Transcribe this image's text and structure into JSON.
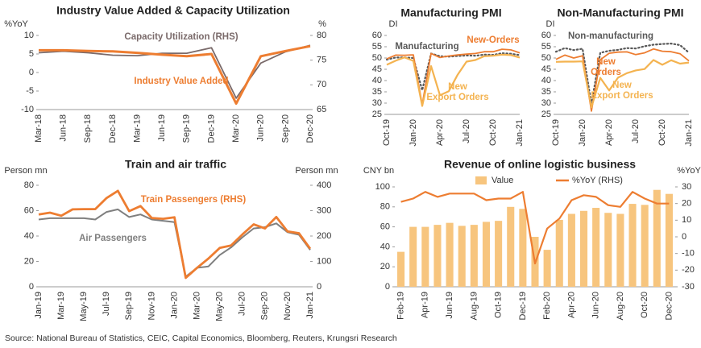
{
  "chart_data": [
    {
      "type": "line",
      "title": "Industry Value Added & Capacity Utilization",
      "y_label": "%YoY",
      "y2_label": "%",
      "categories": [
        "Mar-18",
        "Jun-18",
        "Sep-18",
        "Dec-18",
        "Mar-19",
        "Jun-19",
        "Sep-19",
        "Dec-19",
        "Mar-20",
        "Jun-20",
        "Sep-20",
        "Dec-20"
      ],
      "series": [
        {
          "name": "Capacity Utilization (RHS)",
          "color": "#7a6a6a",
          "axis": "y2",
          "values": [
            76.5,
            76.8,
            76.5,
            76.0,
            75.9,
            76.4,
            76.4,
            77.5,
            67.3,
            74.4,
            76.7,
            78.0
          ]
        },
        {
          "name": "Industry Value Added",
          "color": "#ed7d31",
          "values": [
            6.0,
            6.0,
            5.8,
            5.7,
            5.3,
            4.8,
            4.4,
            5.0,
            -8.4,
            4.4,
            5.8,
            7.1
          ]
        }
      ],
      "ylim": [
        -10,
        10
      ],
      "yticks": [
        -10,
        -5,
        0,
        5,
        10
      ],
      "y2lim": [
        65,
        80
      ],
      "y2ticks": [
        65,
        70,
        75,
        80
      ]
    },
    {
      "type": "line",
      "title": "Manufacturing PMI",
      "y_label": "DI",
      "categories": [
        "Oct-19",
        null,
        null,
        "Jan-20",
        null,
        null,
        "Apr-20",
        null,
        null,
        "Jul-20",
        null,
        null,
        "Oct-20",
        null,
        null,
        "Jan-21"
      ],
      "series": [
        {
          "name": "Manufacturing",
          "color": "#595959",
          "style": "dotted",
          "values": [
            49.3,
            50.2,
            50.2,
            50.0,
            35.7,
            52.0,
            50.8,
            50.6,
            50.9,
            51.1,
            51.0,
            51.5,
            51.4,
            52.1,
            51.9,
            51.3
          ]
        },
        {
          "name": "New-Orders",
          "color": "#ed7d31",
          "values": [
            49.6,
            51.3,
            51.2,
            51.4,
            29.3,
            52.0,
            50.2,
            50.9,
            51.4,
            51.7,
            52.0,
            52.8,
            52.8,
            53.9,
            53.6,
            52.3
          ]
        },
        {
          "name": "New\nExport Orders",
          "color": "#f4b350",
          "values": [
            47.0,
            48.8,
            50.3,
            48.7,
            28.7,
            46.4,
            33.5,
            35.3,
            42.6,
            48.4,
            49.1,
            50.8,
            51.0,
            51.5,
            51.3,
            50.2
          ]
        }
      ],
      "ylim": [
        25,
        60
      ],
      "yticks": [
        25,
        30,
        35,
        40,
        45,
        50,
        55,
        60
      ]
    },
    {
      "type": "line",
      "title": "Non-Manufacturing PMI",
      "y_label": "DI",
      "categories": [
        "Oct-19",
        null,
        null,
        "Jan-20",
        null,
        null,
        "Apr-20",
        null,
        null,
        "Jul-20",
        null,
        null,
        "Oct-20",
        null,
        null,
        "Jan-21"
      ],
      "series": [
        {
          "name": "Non-manufacturing",
          "color": "#595959",
          "style": "dotted",
          "values": [
            52.8,
            54.4,
            53.5,
            54.1,
            29.6,
            52.3,
            53.2,
            53.6,
            54.4,
            54.2,
            55.2,
            55.9,
            56.2,
            56.4,
            55.7,
            52.4
          ]
        },
        {
          "name": "New\nOrders",
          "color": "#ed7d31",
          "values": [
            49.4,
            51.3,
            50.0,
            51.0,
            26.5,
            49.2,
            52.1,
            52.6,
            52.7,
            51.5,
            52.3,
            54.0,
            53.0,
            52.8,
            51.9,
            48.7
          ]
        },
        {
          "name": "New\nExport Orders",
          "color": "#f4b350",
          "values": [
            48.3,
            48.4,
            48.4,
            48.5,
            28.1,
            41.2,
            35.6,
            41.3,
            43.3,
            44.5,
            45.1,
            49.1,
            47.0,
            49.0,
            47.5,
            48.0
          ]
        }
      ],
      "ylim": [
        25,
        60
      ],
      "yticks": [
        25,
        30,
        35,
        40,
        45,
        50,
        55,
        60
      ]
    },
    {
      "type": "line",
      "title": "Train and air traffic",
      "y_label": "Person mn",
      "y2_label": "Person mn",
      "categories": [
        "Jan-19",
        null,
        "Mar-19",
        null,
        "May-19",
        null,
        "Jul-19",
        null,
        "Sep-19",
        null,
        "Nov-19",
        null,
        "Jan-20",
        null,
        "Mar-20",
        null,
        "May-20",
        null,
        "Jul-20",
        null,
        "Sep-20",
        null,
        "Nov-20",
        null,
        "Jan-21"
      ],
      "series": [
        {
          "name": "Air Passengers",
          "color": "#7f7f7f",
          "values": [
            53,
            54,
            54,
            54,
            54,
            53,
            59,
            61,
            55,
            57,
            53,
            52,
            51,
            8,
            15,
            16,
            25,
            31,
            39,
            46,
            47,
            50,
            43,
            41,
            29
          ]
        },
        {
          "name": "Train Passengers (RHS)",
          "color": "#ed7d31",
          "axis": "y2",
          "values": [
            285,
            292,
            280,
            305,
            306,
            306,
            350,
            378,
            298,
            318,
            271,
            268,
            274,
            35,
            75,
            111,
            153,
            163,
            206,
            246,
            230,
            275,
            218,
            211,
            150
          ]
        }
      ],
      "ylim": [
        0,
        80
      ],
      "yticks": [
        0,
        20,
        40,
        60,
        80
      ],
      "y2lim": [
        0,
        400
      ],
      "y2ticks": [
        0,
        100,
        200,
        300,
        400
      ]
    },
    {
      "type": "bar",
      "title": "Revenue of online logistic business",
      "y_label": "CNY bn",
      "y2_label": "%YoY",
      "categories": [
        "Feb-19",
        null,
        "Apr-19",
        null,
        "Jun-19",
        null,
        "Aug-19",
        null,
        "Oct-19",
        null,
        "Dec-19",
        null,
        "Feb-20",
        null,
        "Apr-20",
        null,
        "Jun-20",
        null,
        "Aug-20",
        null,
        "Oct-20",
        null,
        "Dec-20"
      ],
      "series": [
        {
          "name": "Value",
          "type": "bar",
          "color": "#f7c57e",
          "values": [
            35,
            60,
            60,
            62,
            64,
            61,
            62,
            65,
            66,
            80,
            78,
            50,
            37,
            67,
            73,
            76,
            79,
            74,
            73,
            83,
            82,
            97,
            93
          ]
        },
        {
          "name": "%YoY (RHS)",
          "type": "line",
          "color": "#ed7d31",
          "axis": "y2",
          "values": [
            21,
            23,
            27,
            24,
            26,
            26,
            26,
            22,
            23,
            23,
            27,
            -16,
            5,
            11,
            22,
            25,
            24,
            19,
            18,
            27,
            23,
            20,
            20
          ]
        }
      ],
      "ylim": [
        0,
        100
      ],
      "yticks": [
        0,
        20,
        40,
        60,
        80,
        100
      ],
      "y2lim": [
        -30,
        30
      ],
      "y2ticks": [
        -30,
        -20,
        -10,
        0,
        10,
        20,
        30
      ],
      "legend": "top"
    }
  ],
  "source": "Source: National Bureau of Statistics, CEIC, Capital Economics, Bloomberg, Reuters, Krungsri Research"
}
